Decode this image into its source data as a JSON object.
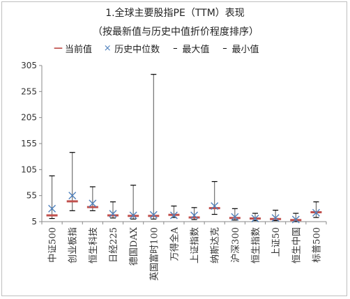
{
  "chart_data": {
    "type": "range",
    "title": "1.全球主要股指PE（TTM）表现",
    "subtitle": "（按最新值与历史中值折价程度排序）",
    "legend": [
      {
        "label": "当前值",
        "symbol": "bar",
        "color": "#c0504d"
      },
      {
        "label": "历史中位数",
        "symbol": "x",
        "color": "#4f81bd"
      },
      {
        "label": "最大值",
        "symbol": "dash",
        "color": "#000000"
      },
      {
        "label": "最小值",
        "symbol": "dash",
        "color": "#000000"
      }
    ],
    "y_ticks": [
      "305",
      "255",
      "205",
      "155",
      "105",
      "55",
      "5"
    ],
    "ylim": [
      5,
      305
    ],
    "categories": [
      "中证500",
      "创业板指",
      "恒生科技",
      "日经225",
      "德国DAX",
      "英国富时100",
      "万得全A",
      "上证指数",
      "纳斯达克",
      "沪深300",
      "恒生指数",
      "上证50",
      "恒生中国",
      "标普500"
    ],
    "series": {
      "current": [
        17,
        44,
        33,
        17,
        16,
        16,
        18,
        13,
        31,
        12,
        11,
        10,
        8,
        23
      ],
      "median": [
        30,
        55,
        40,
        20,
        17,
        18,
        17,
        17,
        35,
        14,
        11,
        12,
        9,
        22
      ],
      "max": [
        93,
        138,
        72,
        43,
        75,
        288,
        35,
        32,
        82,
        30,
        21,
        27,
        21,
        43
      ],
      "min": [
        11,
        26,
        26,
        12,
        10,
        10,
        13,
        9,
        19,
        8,
        7,
        7,
        5,
        13
      ]
    }
  },
  "colors": {
    "current": "#c0504d",
    "median": "#4f81bd",
    "whisker": "#000000",
    "axis": "#888888"
  }
}
